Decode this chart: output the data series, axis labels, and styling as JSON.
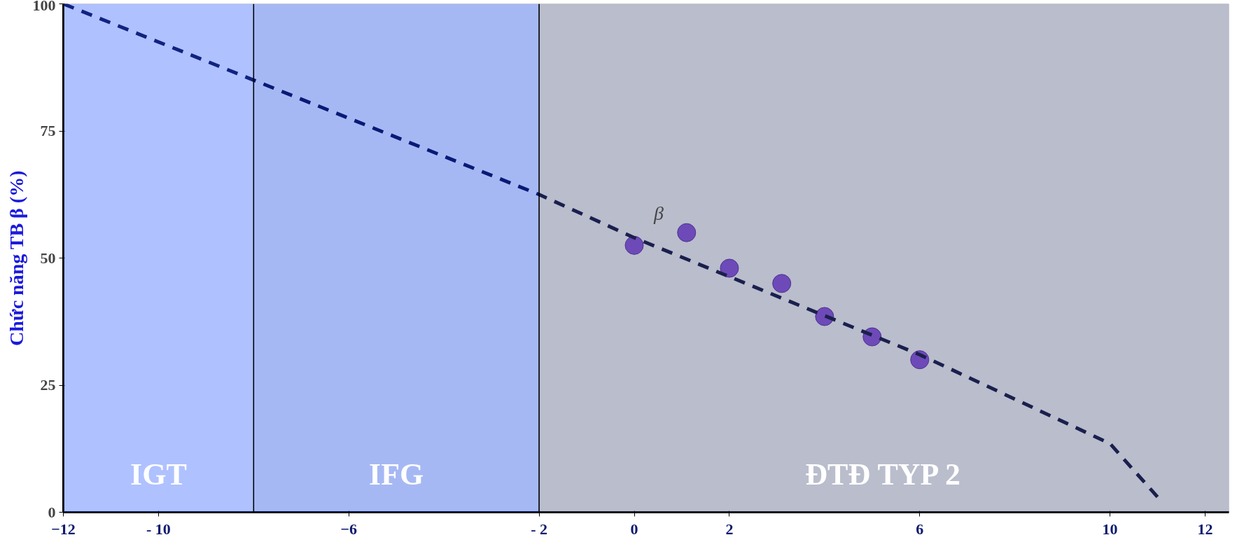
{
  "chart_data": {
    "type": "scatter",
    "ylabel": "Chức năng TB β (%)",
    "xlim": [
      -12,
      12.5
    ],
    "ylim": [
      0,
      100
    ],
    "xticks": [
      -12,
      {
        "value": -10,
        "label": "- 10"
      },
      -6,
      {
        "value": -2,
        "label": "- 2"
      },
      0,
      2,
      6,
      10,
      12
    ],
    "yticks": [
      0,
      25,
      50,
      75,
      100
    ],
    "grid": false,
    "marker": "circle",
    "series": [
      {
        "name": "β",
        "color": "#8a4fe0",
        "x": [
          0,
          1.1,
          2,
          3.1,
          4,
          5,
          6
        ],
        "values": [
          52.5,
          55,
          48,
          45,
          38.5,
          34.5,
          30
        ]
      },
      {
        "type": "line",
        "line_style": "dashed",
        "marker": "none",
        "color": "#0d0d3d",
        "x": [
          -12,
          -2,
          0,
          6,
          10,
          11
        ],
        "values": [
          100,
          62.5,
          54,
          31,
          13.5,
          3
        ]
      }
    ],
    "bands": [
      {
        "axis": "x",
        "from": -12,
        "to": -8,
        "label": "IGT",
        "color": "#1a4cff"
      },
      {
        "axis": "x",
        "from": -8,
        "to": -2,
        "label": "IFG",
        "color": "#0033e0"
      },
      {
        "axis": "x",
        "from": -2,
        "to": 12.5,
        "label": "ĐTĐ TYP 2",
        "color": "#36436e"
      }
    ],
    "ref_lines": [
      {
        "axis": "x",
        "value": -8,
        "label": null,
        "color": "#000000"
      },
      {
        "axis": "x",
        "value": -2,
        "label": null,
        "color": "#000000"
      }
    ]
  }
}
